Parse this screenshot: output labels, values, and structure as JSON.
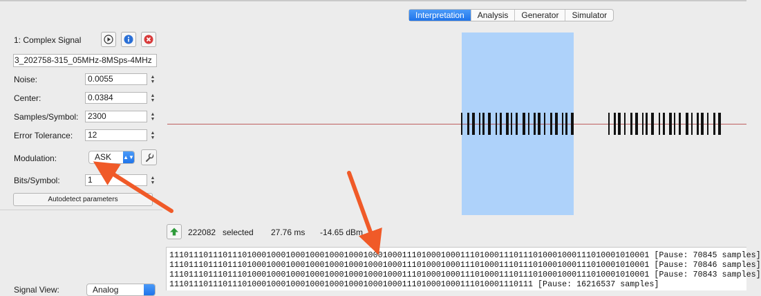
{
  "tabs": [
    {
      "label": "Interpretation",
      "active": true
    },
    {
      "label": "Analysis",
      "active": false
    },
    {
      "label": "Generator",
      "active": false
    },
    {
      "label": "Simulator",
      "active": false
    }
  ],
  "signal_panel": {
    "title": "1:   Complex Signal",
    "filename": "3_202758-315_05MHz-8MSps-4MHz",
    "noise_label": "Noise:",
    "noise_value": "0.0055",
    "center_label": "Center:",
    "center_value": "0.0384",
    "samples_label": "Samples/Symbol:",
    "samples_value": "2300",
    "error_label": "Error Tolerance:",
    "error_value": "12",
    "modulation_label": "Modulation:",
    "modulation_value": "ASK",
    "bits_label": "Bits/Symbol:",
    "bits_value": "1",
    "autodetect_label": "Autodetect parameters",
    "signal_view_label": "Signal View:",
    "signal_view_value": "Analog"
  },
  "selection_info": {
    "samples": "222082",
    "selected_label": "selected",
    "duration": "27.76 ms",
    "power": "-14.65 dBm"
  },
  "output_lines": [
    "111011101110111010001000100010001000100010001000111010001000111010001110111010001000111010001010001 [Pause: 70845 samples]",
    "111011101110111010001000100010001000100010001000111010001000111010001110111010001000111010001010001 [Pause: 70846 samples]",
    "111011101110111010001000100010001000100010001000111010001000111010001110111010001000111010001010001 [Pause: 70843 samples]",
    "111011101110111010001000100010001000100010001000111010001000111010001110111 [Pause: 16216537 samples]"
  ],
  "colors": {
    "accent": "#1f74ea",
    "selection": "#aed2fa",
    "arrow": "#f05a28",
    "baseline": "#b33a3a"
  },
  "icons": {
    "play": "play-icon",
    "info": "info-icon",
    "close": "close-icon",
    "wrench": "wrench-icon",
    "up": "up-arrow-icon"
  }
}
